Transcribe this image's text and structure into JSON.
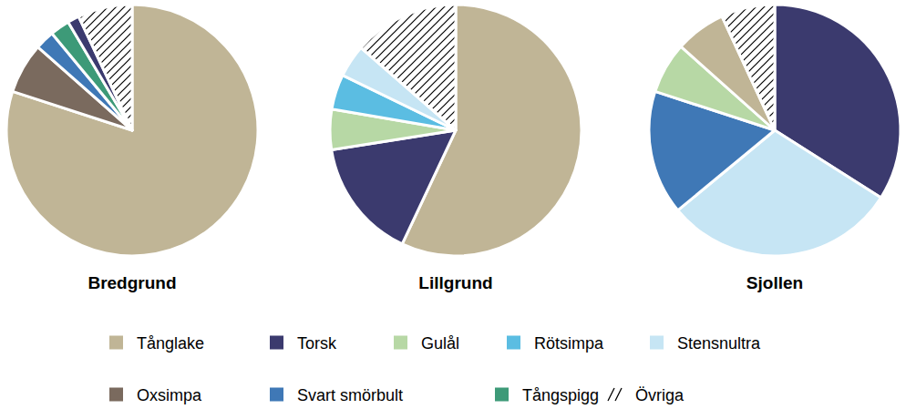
{
  "chart_data": [
    {
      "type": "pie",
      "title": "Bredgrund",
      "categories": [
        "Tånglake",
        "Oxsimpa",
        "Svart smörbult",
        "Tångspigg",
        "Torsk",
        "Övriga"
      ],
      "values": [
        80,
        6.5,
        2.5,
        2.5,
        1.5,
        7
      ]
    },
    {
      "type": "pie",
      "title": "Lillgrund",
      "categories": [
        "Tånglake",
        "Torsk",
        "Gulål",
        "Rötsimpa",
        "Stensnultra",
        "Övriga"
      ],
      "values": [
        57,
        15.5,
        5.2,
        4.5,
        4.2,
        13.6
      ]
    },
    {
      "type": "pie",
      "title": "Sjollen",
      "categories": [
        "Torsk",
        "Stensnultra",
        "Svart smörbult",
        "Gulål",
        "Tånglake",
        "Övriga"
      ],
      "values": [
        34,
        30,
        16,
        6.6,
        6.5,
        6.9
      ]
    }
  ],
  "legend_items": [
    {
      "name": "Tånglake",
      "color": "#c0b596"
    },
    {
      "name": "Torsk",
      "color": "#3b3a6e"
    },
    {
      "name": "Gulål",
      "color": "#b7d8a5"
    },
    {
      "name": "Rötsimpa",
      "color": "#5bbde2"
    },
    {
      "name": "Stensnultra",
      "color": "#c6e5f4"
    },
    {
      "name": "Oxsimpa",
      "color": "#7a6a5e"
    },
    {
      "name": "Svart smörbult",
      "color": "#3f78b6"
    },
    {
      "name": "Tångspigg",
      "color": "#3d9a78"
    },
    {
      "name": "Övriga",
      "color": "#000000",
      "line_style": "hatched"
    }
  ]
}
